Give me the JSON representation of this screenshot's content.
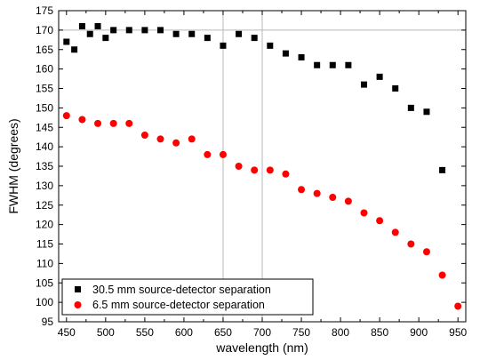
{
  "chart_data": {
    "type": "scatter",
    "xlabel": "wavelength (nm)",
    "ylabel": "FWHM (degrees)",
    "xlim": [
      440,
      960
    ],
    "ylim": [
      95,
      175
    ],
    "xticks": [
      450,
      500,
      550,
      600,
      650,
      700,
      750,
      800,
      850,
      900,
      950
    ],
    "yticks": [
      95,
      100,
      105,
      110,
      115,
      120,
      125,
      130,
      135,
      140,
      145,
      150,
      155,
      160,
      165,
      170,
      175
    ],
    "grid_x": [
      650,
      700
    ],
    "grid_y": [
      170
    ],
    "legend_position": "bottom-left",
    "series": [
      {
        "name": "30.5 mm source-detector separation",
        "marker": "square",
        "color": "#000000",
        "x": [
          450,
          460,
          470,
          480,
          490,
          500,
          510,
          530,
          550,
          570,
          590,
          610,
          630,
          650,
          670,
          690,
          710,
          730,
          750,
          770,
          790,
          810,
          830,
          850,
          870,
          890,
          910,
          930
        ],
        "y": [
          167,
          165,
          171,
          169,
          171,
          168,
          170,
          170,
          170,
          170,
          169,
          169,
          168,
          166,
          169,
          168,
          166,
          164,
          163,
          161,
          161,
          161,
          156,
          158,
          155,
          150,
          149,
          134
        ]
      },
      {
        "name": "6.5 mm source-detector separation",
        "marker": "circle",
        "color": "#ff0000",
        "x": [
          450,
          470,
          490,
          510,
          530,
          550,
          570,
          590,
          610,
          630,
          650,
          670,
          690,
          710,
          730,
          750,
          770,
          790,
          810,
          830,
          850,
          870,
          890,
          910,
          930,
          950
        ],
        "y": [
          148,
          147,
          146,
          146,
          146,
          143,
          142,
          141,
          142,
          138,
          138,
          135,
          134,
          134,
          133,
          129,
          128,
          127,
          126,
          123,
          121,
          118,
          115,
          113,
          107,
          99
        ]
      }
    ]
  }
}
